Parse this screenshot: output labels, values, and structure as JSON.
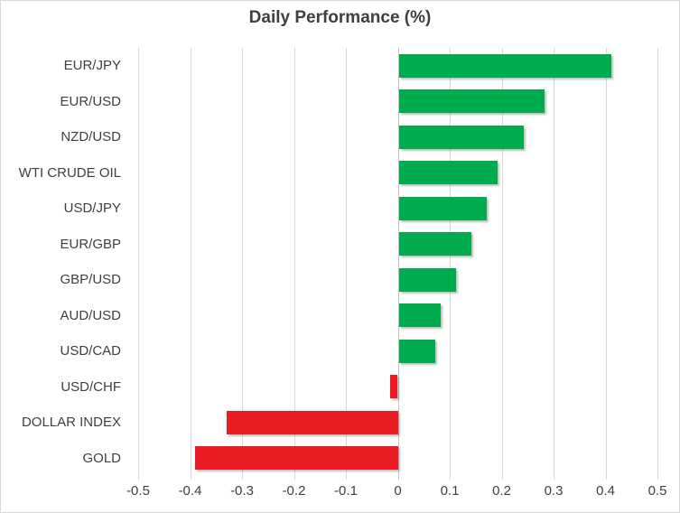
{
  "chart_data": {
    "type": "bar",
    "orientation": "horizontal",
    "title": "Daily Performance (%)",
    "categories": [
      "EUR/JPY",
      "EUR/USD",
      "NZD/USD",
      "WTI CRUDE OIL",
      "USD/JPY",
      "EUR/GBP",
      "GBP/USD",
      "AUD/USD",
      "USD/CAD",
      "USD/CHF",
      "DOLLAR INDEX",
      "GOLD"
    ],
    "values": [
      0.41,
      0.28,
      0.24,
      0.19,
      0.17,
      0.14,
      0.11,
      0.08,
      0.07,
      -0.015,
      -0.33,
      -0.39
    ],
    "xlabel": "",
    "ylabel": "",
    "xlim": [
      -0.5,
      0.5
    ],
    "xticks": [
      -0.5,
      -0.4,
      -0.3,
      -0.2,
      -0.1,
      0,
      0.1,
      0.2,
      0.3,
      0.4,
      0.5
    ],
    "xtick_labels": [
      "-0.5",
      "-0.4",
      "-0.3",
      "-0.2",
      "-0.1",
      "0",
      "0.1",
      "0.2",
      "0.3",
      "0.4",
      "0.5"
    ],
    "grid": true,
    "legend": false
  },
  "colors": {
    "positive_bar": "#00ab4e",
    "negative_bar": "#ec1c24",
    "gridline": "#d9d9d9",
    "zero_axis": "#c3c3c3",
    "text": "#3f3f3f",
    "border": "#d8d8d8",
    "background": "#ffffff"
  }
}
